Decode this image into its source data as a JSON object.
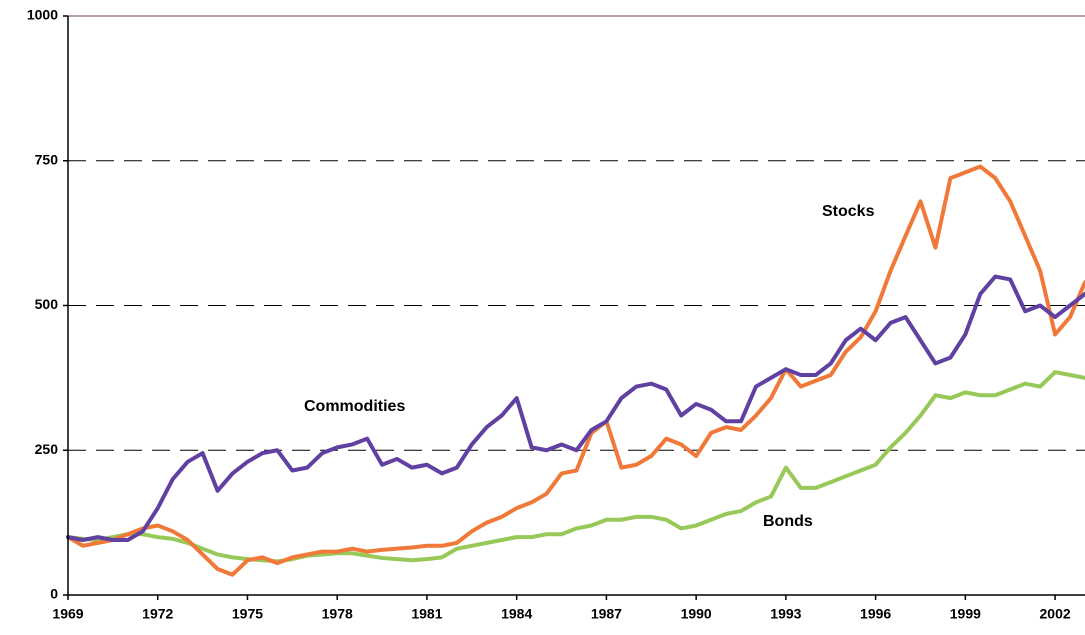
{
  "chart_data": {
    "type": "line",
    "x": [
      1969,
      1969.5,
      1970,
      1970.5,
      1971,
      1971.5,
      1972,
      1972.5,
      1973,
      1973.5,
      1974,
      1974.5,
      1975,
      1975.5,
      1976,
      1976.5,
      1977,
      1977.5,
      1978,
      1978.5,
      1979,
      1979.5,
      1980,
      1980.5,
      1981,
      1981.5,
      1982,
      1982.5,
      1983,
      1983.5,
      1984,
      1984.5,
      1985,
      1985.5,
      1986,
      1986.5,
      1987,
      1987.5,
      1988,
      1988.5,
      1989,
      1989.5,
      1990,
      1990.5,
      1991,
      1991.5,
      1992,
      1992.5,
      1993,
      1993.5,
      1994,
      1994.5,
      1995,
      1995.5,
      1996,
      1996.5,
      1997,
      1997.5,
      1998,
      1998.5,
      1999,
      1999.5,
      2000,
      2000.5,
      2001,
      2001.5,
      2002,
      2002.5,
      2003
    ],
    "series": [
      {
        "name": "Stocks",
        "color": "#f07838",
        "values": [
          100,
          85,
          90,
          95,
          105,
          115,
          120,
          110,
          95,
          70,
          45,
          35,
          60,
          65,
          55,
          65,
          70,
          75,
          75,
          80,
          75,
          78,
          80,
          82,
          85,
          85,
          90,
          110,
          125,
          135,
          150,
          160,
          175,
          210,
          215,
          280,
          300,
          220,
          225,
          240,
          270,
          260,
          240,
          280,
          290,
          285,
          310,
          340,
          390,
          360,
          370,
          380,
          420,
          445,
          490,
          560,
          620,
          680,
          600,
          720,
          730,
          740,
          720,
          680,
          620,
          560,
          450,
          480,
          540
        ]
      },
      {
        "name": "Commodities",
        "color": "#6040a0",
        "values": [
          100,
          95,
          100,
          95,
          95,
          110,
          150,
          200,
          230,
          245,
          180,
          210,
          230,
          245,
          250,
          215,
          220,
          245,
          255,
          260,
          270,
          225,
          235,
          220,
          225,
          210,
          220,
          260,
          290,
          310,
          340,
          255,
          250,
          260,
          250,
          285,
          300,
          340,
          360,
          365,
          355,
          310,
          330,
          320,
          300,
          300,
          360,
          375,
          390,
          380,
          380,
          400,
          440,
          460,
          440,
          470,
          480,
          440,
          400,
          410,
          450,
          520,
          550,
          545,
          490,
          500,
          480,
          500,
          520
        ]
      },
      {
        "name": "Bonds",
        "color": "#98c858",
        "values": [
          100,
          97,
          95,
          100,
          105,
          105,
          100,
          97,
          90,
          80,
          70,
          65,
          62,
          60,
          58,
          62,
          68,
          70,
          72,
          72,
          68,
          64,
          62,
          60,
          62,
          65,
          80,
          85,
          90,
          95,
          100,
          100,
          105,
          105,
          115,
          120,
          130,
          130,
          135,
          135,
          130,
          115,
          120,
          130,
          140,
          145,
          160,
          170,
          220,
          185,
          185,
          195,
          205,
          215,
          225,
          255,
          280,
          310,
          345,
          340,
          350,
          345,
          345,
          355,
          365,
          360,
          385,
          380,
          375
        ]
      }
    ],
    "annotations": [
      "Stocks",
      "Commodities",
      "Bonds"
    ],
    "xlim": [
      1969,
      2003
    ],
    "xticks": [
      1969,
      1972,
      1975,
      1978,
      1981,
      1984,
      1987,
      1990,
      1993,
      1996,
      1999,
      2002
    ],
    "ylim": [
      0,
      1000
    ],
    "yticks": [
      0,
      250,
      500,
      750,
      1000
    ],
    "grid": true
  }
}
